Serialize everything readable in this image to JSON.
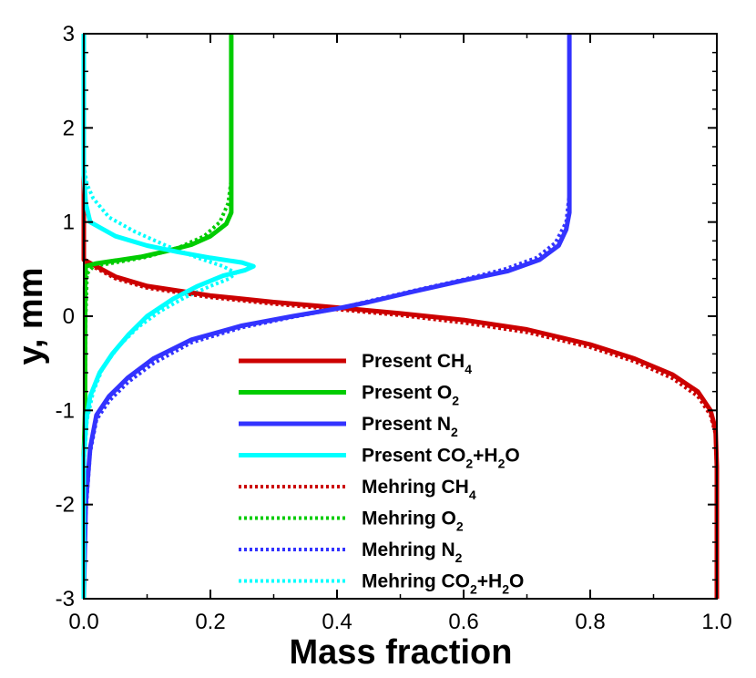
{
  "chart_data": {
    "type": "line",
    "xlabel": "Mass fraction",
    "ylabel": "y, mm",
    "xlim": [
      0,
      1
    ],
    "ylim": [
      -3,
      3
    ],
    "xticks": [
      0,
      0.2,
      0.4,
      0.6,
      0.8,
      1.0
    ],
    "xtick_labels": [
      "0.0",
      "0.2",
      "0.4",
      "0.6",
      "0.8",
      "1.0"
    ],
    "yticks": [
      -3,
      -2,
      -1,
      0,
      1,
      2,
      3
    ],
    "ytick_labels": [
      "-3",
      "-2",
      "-1",
      "0",
      "1",
      "2",
      "3"
    ],
    "grid": false,
    "legend_position": "bottom-center",
    "series": [
      {
        "name": "Present CH4",
        "label_prefix": "Present CH",
        "label_sub": "4",
        "label_suffix": "",
        "color": "#cc0000",
        "style": "solid",
        "points": [
          [
            0,
            3
          ],
          [
            0,
            0.6
          ],
          [
            0.05,
            0.42
          ],
          [
            0.1,
            0.32
          ],
          [
            0.2,
            0.22
          ],
          [
            0.3,
            0.15
          ],
          [
            0.42,
            0.08
          ],
          [
            0.5,
            0.03
          ],
          [
            0.6,
            -0.04
          ],
          [
            0.7,
            -0.14
          ],
          [
            0.8,
            -0.3
          ],
          [
            0.87,
            -0.45
          ],
          [
            0.93,
            -0.62
          ],
          [
            0.97,
            -0.8
          ],
          [
            0.99,
            -1.0
          ],
          [
            0.998,
            -1.2
          ],
          [
            1.0,
            -1.6
          ],
          [
            1.0,
            -3
          ]
        ]
      },
      {
        "name": "Present O2",
        "label_prefix": "Present O",
        "label_sub": "2",
        "label_suffix": "",
        "color": "#00cc00",
        "style": "solid",
        "points": [
          [
            0.233,
            3
          ],
          [
            0.233,
            1.1
          ],
          [
            0.225,
            0.98
          ],
          [
            0.2,
            0.85
          ],
          [
            0.17,
            0.76
          ],
          [
            0.13,
            0.69
          ],
          [
            0.09,
            0.63
          ],
          [
            0.05,
            0.59
          ],
          [
            0.02,
            0.56
          ],
          [
            0.003,
            0.53
          ],
          [
            0.002,
            0.3
          ],
          [
            0.002,
            -1.0
          ],
          [
            0.0,
            -1.5
          ],
          [
            0.0,
            -3
          ]
        ]
      },
      {
        "name": "Present N2",
        "label_prefix": "Present N",
        "label_sub": "2",
        "label_suffix": "",
        "color": "#3333ff",
        "style": "solid",
        "points": [
          [
            0.767,
            3
          ],
          [
            0.767,
            1.1
          ],
          [
            0.762,
            0.92
          ],
          [
            0.75,
            0.75
          ],
          [
            0.72,
            0.6
          ],
          [
            0.67,
            0.48
          ],
          [
            0.6,
            0.38
          ],
          [
            0.52,
            0.26
          ],
          [
            0.45,
            0.15
          ],
          [
            0.4,
            0.08
          ],
          [
            0.33,
            0.0
          ],
          [
            0.25,
            -0.1
          ],
          [
            0.17,
            -0.25
          ],
          [
            0.11,
            -0.45
          ],
          [
            0.07,
            -0.65
          ],
          [
            0.04,
            -0.85
          ],
          [
            0.02,
            -1.05
          ],
          [
            0.01,
            -1.4
          ],
          [
            0.003,
            -2.0
          ],
          [
            0.0,
            -3
          ]
        ]
      },
      {
        "name": "Present CO2+H2O",
        "label_prefix": "Present CO",
        "label_sub": "2",
        "label_suffix": "+H",
        "label_sub2": "2",
        "label_suffix2": "O",
        "color": "#00ffff",
        "style": "solid",
        "points": [
          [
            0.0,
            3
          ],
          [
            0.0,
            1.5
          ],
          [
            0.003,
            1.2
          ],
          [
            0.01,
            1.0
          ],
          [
            0.05,
            0.85
          ],
          [
            0.1,
            0.75
          ],
          [
            0.15,
            0.68
          ],
          [
            0.2,
            0.62
          ],
          [
            0.25,
            0.57
          ],
          [
            0.268,
            0.53
          ],
          [
            0.255,
            0.49
          ],
          [
            0.22,
            0.43
          ],
          [
            0.18,
            0.32
          ],
          [
            0.14,
            0.18
          ],
          [
            0.1,
            0.0
          ],
          [
            0.07,
            -0.2
          ],
          [
            0.045,
            -0.4
          ],
          [
            0.025,
            -0.6
          ],
          [
            0.01,
            -0.85
          ],
          [
            0.004,
            -1.1
          ],
          [
            0.0,
            -1.5
          ],
          [
            0.0,
            -3
          ]
        ]
      },
      {
        "name": "Mehring CH4",
        "label_prefix": "Mehring CH",
        "label_sub": "4",
        "label_suffix": "",
        "color": "#cc0000",
        "style": "dotted",
        "points": [
          [
            0,
            3
          ],
          [
            0,
            0.58
          ],
          [
            0.05,
            0.4
          ],
          [
            0.1,
            0.3
          ],
          [
            0.2,
            0.2
          ],
          [
            0.3,
            0.13
          ],
          [
            0.42,
            0.06
          ],
          [
            0.5,
            0.01
          ],
          [
            0.6,
            -0.07
          ],
          [
            0.7,
            -0.17
          ],
          [
            0.8,
            -0.33
          ],
          [
            0.87,
            -0.48
          ],
          [
            0.93,
            -0.66
          ],
          [
            0.97,
            -0.85
          ],
          [
            0.99,
            -1.05
          ],
          [
            0.998,
            -1.25
          ],
          [
            1.0,
            -1.7
          ],
          [
            1.0,
            -3
          ]
        ]
      },
      {
        "name": "Mehring O2",
        "label_prefix": "Mehring O",
        "label_sub": "2",
        "label_suffix": "",
        "color": "#00cc00",
        "style": "dotted",
        "points": [
          [
            0.233,
            3
          ],
          [
            0.233,
            1.45
          ],
          [
            0.228,
            1.2
          ],
          [
            0.215,
            1.0
          ],
          [
            0.19,
            0.85
          ],
          [
            0.15,
            0.73
          ],
          [
            0.1,
            0.63
          ],
          [
            0.05,
            0.57
          ],
          [
            0.015,
            0.53
          ],
          [
            0.005,
            0.45
          ],
          [
            0.003,
            0.0
          ],
          [
            0.002,
            -1.0
          ],
          [
            0.0,
            -1.6
          ],
          [
            0.0,
            -3
          ]
        ]
      },
      {
        "name": "Mehring N2",
        "label_prefix": "Mehring N",
        "label_sub": "2",
        "label_suffix": "",
        "color": "#3333ff",
        "style": "dotted",
        "points": [
          [
            0.767,
            3
          ],
          [
            0.767,
            1.3
          ],
          [
            0.762,
            1.0
          ],
          [
            0.745,
            0.78
          ],
          [
            0.715,
            0.62
          ],
          [
            0.665,
            0.5
          ],
          [
            0.6,
            0.39
          ],
          [
            0.52,
            0.27
          ],
          [
            0.45,
            0.16
          ],
          [
            0.4,
            0.08
          ],
          [
            0.33,
            -0.01
          ],
          [
            0.25,
            -0.12
          ],
          [
            0.17,
            -0.28
          ],
          [
            0.11,
            -0.5
          ],
          [
            0.07,
            -0.7
          ],
          [
            0.04,
            -0.9
          ],
          [
            0.02,
            -1.1
          ],
          [
            0.01,
            -1.45
          ],
          [
            0.003,
            -2.1
          ],
          [
            0.0,
            -3
          ]
        ]
      },
      {
        "name": "Mehring CO2+H2O",
        "label_prefix": "Mehring CO",
        "label_sub": "2",
        "label_suffix": "+H",
        "label_sub2": "2",
        "label_suffix2": "O",
        "color": "#00ffff",
        "style": "dotted",
        "points": [
          [
            0.0,
            3
          ],
          [
            0.0,
            1.6
          ],
          [
            0.005,
            1.4
          ],
          [
            0.015,
            1.25
          ],
          [
            0.04,
            1.05
          ],
          [
            0.08,
            0.9
          ],
          [
            0.13,
            0.75
          ],
          [
            0.18,
            0.62
          ],
          [
            0.22,
            0.53
          ],
          [
            0.24,
            0.46
          ],
          [
            0.23,
            0.4
          ],
          [
            0.2,
            0.32
          ],
          [
            0.16,
            0.2
          ],
          [
            0.12,
            0.05
          ],
          [
            0.085,
            -0.12
          ],
          [
            0.055,
            -0.32
          ],
          [
            0.03,
            -0.55
          ],
          [
            0.015,
            -0.8
          ],
          [
            0.005,
            -1.1
          ],
          [
            0.0,
            -1.6
          ],
          [
            0.0,
            -3
          ]
        ]
      }
    ]
  }
}
